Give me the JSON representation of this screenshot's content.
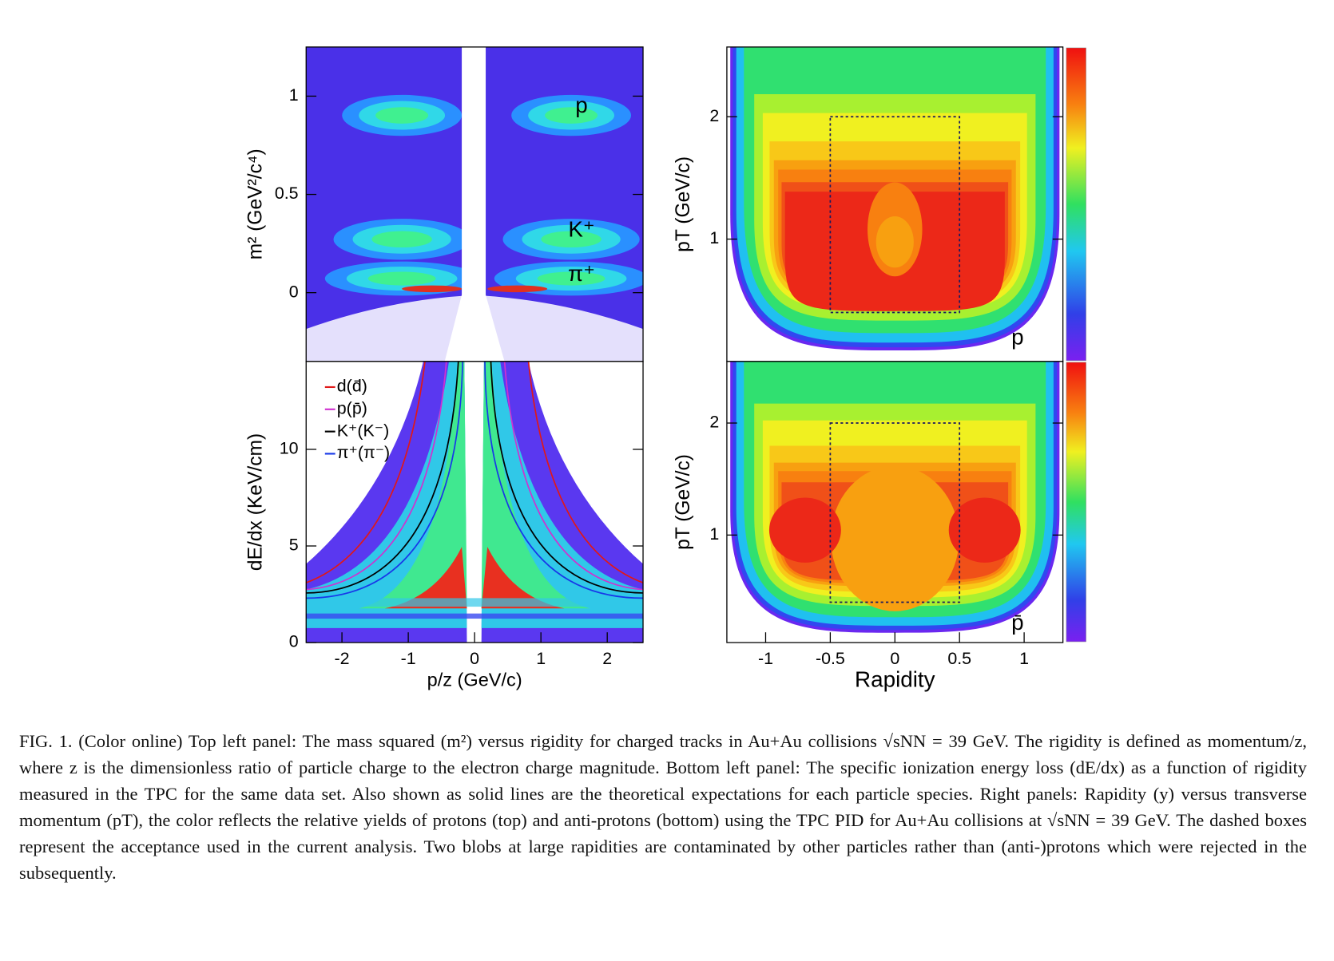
{
  "chart_data": [
    {
      "type": "heatmap",
      "ylabel": "m² (GeV²/c⁴)",
      "xlim": [
        -2.54,
        2.54
      ],
      "ylim": [
        -0.35,
        1.25
      ],
      "yticks": [
        0,
        0.5,
        1
      ],
      "annotations": [
        "p",
        "K⁺",
        "π⁺"
      ]
    },
    {
      "type": "heatmap",
      "xlabel": "p/z (GeV/c)",
      "ylabel": "dE/dx (KeV/cm)",
      "xlim": [
        -2.54,
        2.54
      ],
      "ylim": [
        0,
        14.55
      ],
      "xticks": [
        -2,
        -1,
        0,
        1,
        2
      ],
      "yticks": [
        0,
        5,
        10
      ],
      "series": [
        {
          "name": "d(d̄)",
          "color": "#e01818"
        },
        {
          "name": "p(p̄)",
          "color": "#d030d0"
        },
        {
          "name": "K⁺(K⁻)",
          "color": "#000000"
        },
        {
          "name": "π⁺(π⁻)",
          "color": "#1838e8"
        }
      ]
    },
    {
      "type": "heatmap",
      "ylabel": "pT (GeV/c)",
      "xlim": [
        -1.3,
        1.3
      ],
      "ylim": [
        0,
        2.57
      ],
      "yticks": [
        1,
        2
      ],
      "annotations": [
        "p"
      ],
      "acceptance_box": {
        "x": [
          -0.5,
          0.5
        ],
        "y": [
          0.4,
          2.0
        ]
      },
      "colorbar": true
    },
    {
      "type": "heatmap",
      "xlabel": "Rapidity",
      "ylabel": "pT (GeV/c)",
      "xlim": [
        -1.3,
        1.3
      ],
      "ylim": [
        0.04,
        2.55
      ],
      "xticks": [
        -1,
        -0.5,
        0,
        0.5,
        1
      ],
      "yticks": [
        1,
        2
      ],
      "annotations": [
        "p̄"
      ],
      "acceptance_box": {
        "x": [
          -0.5,
          0.5
        ],
        "y": [
          0.4,
          2.0
        ]
      },
      "colorbar": true
    }
  ],
  "caption": "FIG. 1. (Color online) Top left panel: The mass squared (m²) versus rigidity for charged tracks in Au+Au collisions √sNN = 39 GeV. The rigidity is defined as momentum/z, where z is the dimensionless ratio of particle charge to the electron charge magnitude. Bottom left panel: The specific ionization energy loss (dE/dx) as a function of rigidity measured in the TPC for the same data set. Also shown as solid lines are the theoretical expectations for each particle species. Right panels: Rapidity (y) versus transverse momentum (pT), the color reflects the relative yields of protons (top) and anti-protons (bottom) using the TPC PID for Au+Au collisions at √sNN = 39 GeV. The dashed boxes represent the acceptance used in the current analysis. Two blobs at large rapidities are contaminated by other particles rather than (anti-)protons which were rejected in the subsequently."
}
